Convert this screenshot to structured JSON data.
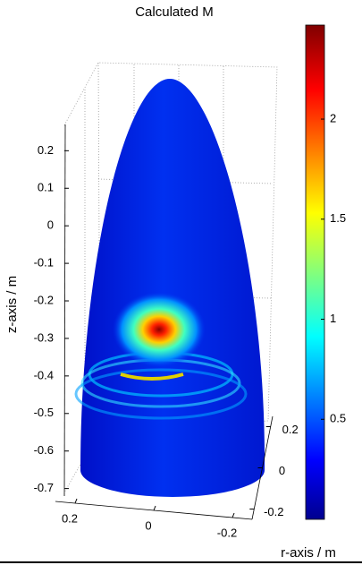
{
  "chart_data": {
    "type": "surface3d",
    "title": "Calculated M",
    "xlabel": "r-axis / m",
    "zlabel": "z-axis / m",
    "xlim": [
      -0.25,
      0.25
    ],
    "xticks": [
      0.2,
      0,
      -0.2
    ],
    "ylim": [
      -0.25,
      0.25
    ],
    "yticks": [
      0.2,
      0,
      -0.2
    ],
    "zlim": [
      -0.72,
      0.27
    ],
    "zticks": [
      0.2,
      0.1,
      0,
      -0.1,
      -0.2,
      -0.3,
      -0.4,
      -0.5,
      -0.6,
      -0.7
    ],
    "clim": [
      0,
      2.47
    ],
    "cticks": [
      0.5,
      1,
      1.5,
      2
    ],
    "colormap": "jet",
    "grid": true
  }
}
